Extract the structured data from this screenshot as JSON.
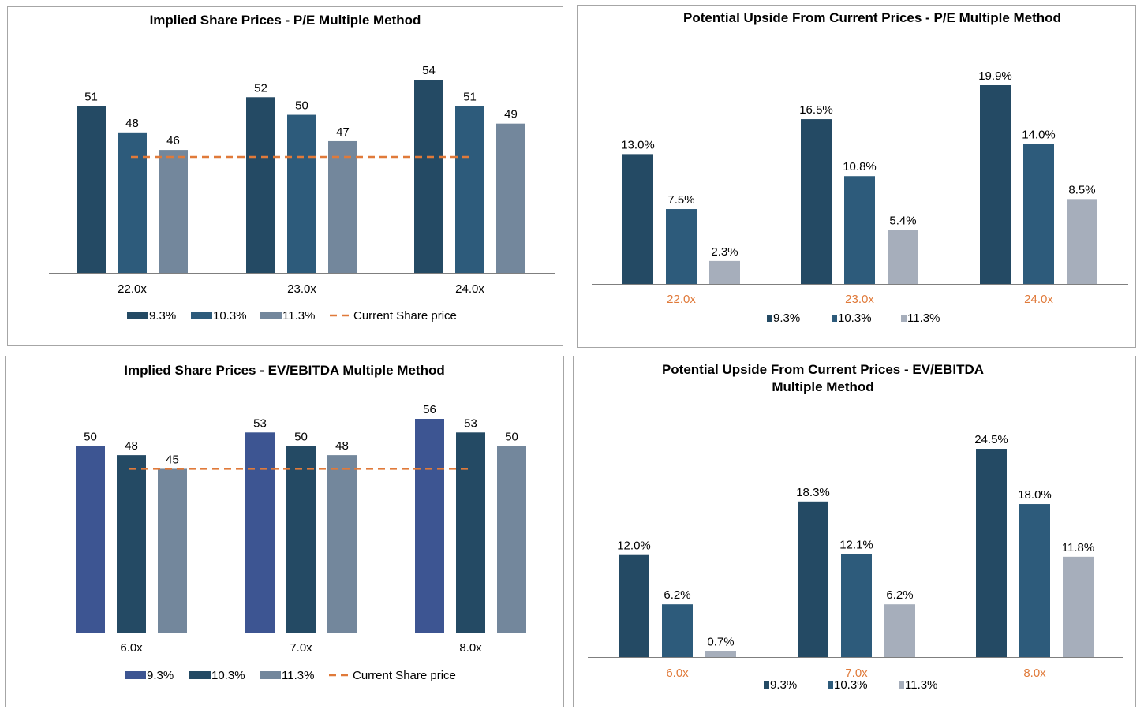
{
  "colors": {
    "dark": "#244a64",
    "mid": "#2d5b7b",
    "gray": "#73879c",
    "lightgray": "#a6aebb",
    "indigo": "#3d5592",
    "orange": "#e07a3a",
    "axis": "#7f7f7f"
  },
  "chart_data": [
    {
      "type": "bar",
      "title": "Implied Share Prices - P/E Multiple Method",
      "categories": [
        "22.0x",
        "23.0x",
        "24.0x"
      ],
      "series": [
        {
          "name": "9.3%",
          "values": [
            51,
            52,
            54
          ],
          "labels": [
            "51",
            "52",
            "54"
          ]
        },
        {
          "name": "10.3%",
          "values": [
            48,
            50,
            51
          ],
          "labels": [
            "48",
            "50",
            "51"
          ]
        },
        {
          "name": "11.3%",
          "values": [
            46,
            47,
            49
          ],
          "labels": [
            "46",
            "47",
            "49"
          ]
        }
      ],
      "reference_line": {
        "name": "Current Share price",
        "value": 45.2
      },
      "ylim": [
        32,
        56
      ],
      "legend": "bottom",
      "tick_label_color": "black"
    },
    {
      "type": "bar",
      "title": "Potential Upside From Current Prices - P/E Multiple Method",
      "categories": [
        "22.0x",
        "23.0x",
        "24.0x"
      ],
      "series": [
        {
          "name": "9.3%",
          "values": [
            13.0,
            16.5,
            19.9
          ],
          "labels": [
            "13.0%",
            "16.5%",
            "19.9%"
          ]
        },
        {
          "name": "10.3%",
          "values": [
            7.5,
            10.8,
            14.0
          ],
          "labels": [
            "7.5%",
            "10.8%",
            "14.0%"
          ]
        },
        {
          "name": "11.3%",
          "values": [
            2.3,
            5.4,
            8.5
          ],
          "labels": [
            "2.3%",
            "5.4%",
            "8.5%"
          ]
        }
      ],
      "ylim": [
        0,
        22
      ],
      "legend": "bottom",
      "tick_label_color": "orange"
    },
    {
      "type": "bar",
      "title": "Implied Share Prices - EV/EBITDA Multiple Method",
      "categories": [
        "6.0x",
        "7.0x",
        "8.0x"
      ],
      "series": [
        {
          "name": "9.3%",
          "values": [
            50,
            53,
            56
          ],
          "labels": [
            "50",
            "53",
            "56"
          ]
        },
        {
          "name": "10.3%",
          "values": [
            48,
            50,
            53
          ],
          "labels": [
            "48",
            "50",
            "53"
          ]
        },
        {
          "name": "11.3%",
          "values": [
            45,
            48,
            50
          ],
          "labels": [
            "45",
            "48",
            "50"
          ]
        }
      ],
      "reference_line": {
        "name": "Current Share price",
        "value": 45
      },
      "ylim": [
        9,
        57
      ],
      "legend": "bottom",
      "tick_label_color": "black"
    },
    {
      "type": "bar",
      "title": "Potential Upside From Current Prices - EV/EBITDA Multiple Method",
      "categories": [
        "6.0x",
        "7.0x",
        "8.0x"
      ],
      "series": [
        {
          "name": "9.3%",
          "values": [
            12.0,
            18.3,
            24.5
          ],
          "labels": [
            "12.0%",
            "18.3%",
            "24.5%"
          ]
        },
        {
          "name": "10.3%",
          "values": [
            6.2,
            12.1,
            18.0
          ],
          "labels": [
            "6.2%",
            "12.1%",
            "18.0%"
          ]
        },
        {
          "name": "11.3%",
          "values": [
            0.7,
            6.2,
            11.8
          ],
          "labels": [
            "0.7%",
            "6.2%",
            "11.8%"
          ]
        }
      ],
      "ylim": [
        0,
        26.5
      ],
      "legend": "bottom",
      "tick_label_color": "orange"
    }
  ]
}
